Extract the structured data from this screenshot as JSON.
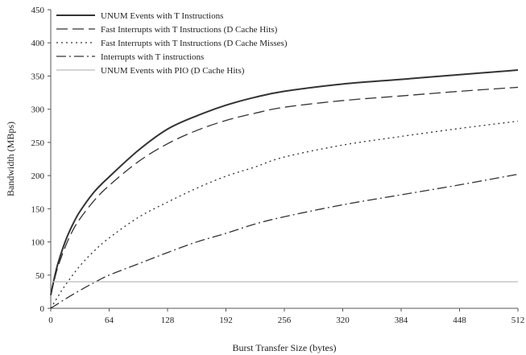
{
  "chart_data": {
    "type": "line",
    "title": "",
    "xlabel": "Burst Transfer Size (bytes)",
    "ylabel": "Bandwidth (MBps)",
    "xlim": [
      0,
      512
    ],
    "ylim": [
      0,
      450
    ],
    "xticks": [
      0,
      64,
      128,
      192,
      256,
      320,
      384,
      448,
      512
    ],
    "yticks": [
      0,
      50,
      100,
      150,
      200,
      250,
      300,
      350,
      400,
      450
    ],
    "grid": false,
    "legend_position": "top-left",
    "series": [
      {
        "name": "UNUM Events with T Instructions",
        "color": "#333333",
        "style": "solid",
        "x": [
          0,
          4,
          8,
          16,
          24,
          32,
          48,
          64,
          96,
          128,
          160,
          192,
          224,
          256,
          320,
          384,
          448,
          512
        ],
        "y": [
          20,
          46,
          68,
          101,
          126,
          146,
          176,
          198,
          238,
          270,
          290,
          306,
          318,
          327,
          338,
          345,
          352,
          359
        ]
      },
      {
        "name": "Fast Interrupts with T Instructions (D Cache Hits)",
        "color": "#333333",
        "style": "dash",
        "x": [
          0,
          4,
          8,
          16,
          24,
          32,
          48,
          64,
          96,
          128,
          160,
          192,
          224,
          256,
          320,
          384,
          448,
          512
        ],
        "y": [
          20,
          43,
          63,
          93,
          117,
          135,
          163,
          185,
          221,
          248,
          268,
          283,
          294,
          303,
          313,
          320,
          327,
          333
        ]
      },
      {
        "name": "Fast Interrupts with T Instructions (D Cache Misses)",
        "color": "#333333",
        "style": "dot",
        "x": [
          0,
          8,
          16,
          32,
          48,
          64,
          96,
          128,
          160,
          192,
          224,
          256,
          320,
          384,
          448,
          512
        ],
        "y": [
          0,
          18,
          35,
          64,
          87,
          106,
          137,
          160,
          181,
          199,
          213,
          228,
          246,
          259,
          271,
          282
        ]
      },
      {
        "name": "Interrupts with T instructions",
        "color": "#333333",
        "style": "dashdot",
        "x": [
          0,
          16,
          32,
          48,
          64,
          96,
          128,
          160,
          192,
          224,
          256,
          320,
          384,
          448,
          512
        ],
        "y": [
          0,
          14,
          27,
          39,
          50,
          67,
          84,
          100,
          113,
          127,
          138,
          156,
          171,
          186,
          202
        ]
      },
      {
        "name": "UNUM Events with PIO  (D Cache Hits)",
        "color": "#bbbbbb",
        "style": "solid",
        "x": [
          0,
          64,
          128,
          192,
          256,
          320,
          384,
          448,
          512
        ],
        "y": [
          40,
          40,
          40,
          40,
          40,
          40,
          40,
          40,
          40
        ]
      }
    ]
  }
}
